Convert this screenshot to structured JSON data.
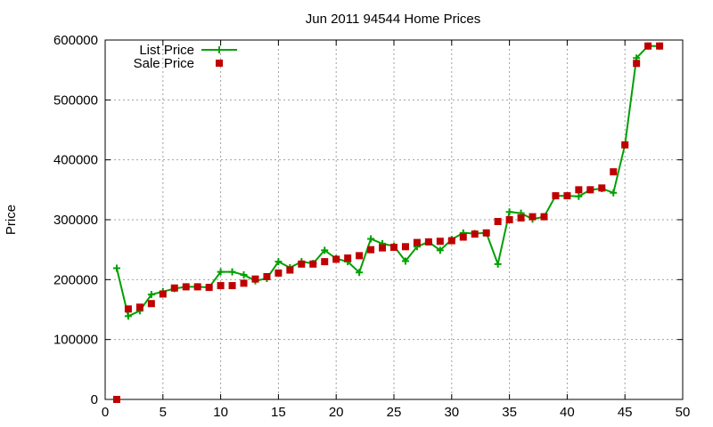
{
  "chart_data": {
    "type": "line",
    "title": "Jun 2011 94544 Home Prices",
    "xlabel": "",
    "ylabel": "Price",
    "xlim": [
      0,
      50
    ],
    "ylim": [
      0,
      600000
    ],
    "x_ticks": [
      0,
      5,
      10,
      15,
      20,
      25,
      30,
      35,
      40,
      45,
      50
    ],
    "y_ticks": [
      0,
      100000,
      200000,
      300000,
      400000,
      500000,
      600000
    ],
    "grid": true,
    "legend_position": "top-left",
    "series": [
      {
        "name": "List Price",
        "style": "line-with-plus-markers",
        "color": "#00a000",
        "x": [
          1,
          2,
          3,
          4,
          5,
          6,
          7,
          8,
          9,
          10,
          11,
          12,
          13,
          14,
          15,
          16,
          17,
          18,
          19,
          20,
          21,
          22,
          23,
          24,
          25,
          26,
          27,
          28,
          29,
          30,
          31,
          32,
          33,
          34,
          35,
          36,
          37,
          38,
          39,
          40,
          41,
          42,
          43,
          44,
          45,
          46,
          47,
          48
        ],
        "y": [
          219000,
          139000,
          148000,
          175000,
          180000,
          185000,
          188000,
          188000,
          187000,
          213000,
          213000,
          208000,
          198000,
          202000,
          230000,
          220000,
          230000,
          227000,
          249000,
          235000,
          230000,
          212000,
          268000,
          260000,
          256000,
          231000,
          255000,
          263000,
          249000,
          267000,
          278000,
          277000,
          278000,
          226000,
          313000,
          311000,
          301000,
          305000,
          340000,
          340000,
          339000,
          350000,
          352000,
          345000,
          425000,
          570000,
          590000,
          590000
        ]
      },
      {
        "name": "Sale Price",
        "style": "square-markers",
        "color": "#c00000",
        "x": [
          1,
          2,
          3,
          4,
          5,
          6,
          7,
          8,
          9,
          10,
          11,
          12,
          13,
          14,
          15,
          16,
          17,
          18,
          19,
          20,
          21,
          22,
          23,
          24,
          25,
          26,
          27,
          28,
          29,
          30,
          31,
          32,
          33,
          34,
          35,
          36,
          37,
          38,
          39,
          40,
          41,
          42,
          43,
          44,
          45,
          46,
          47,
          48
        ],
        "y": [
          0,
          151000,
          154000,
          160000,
          176000,
          186000,
          188000,
          188000,
          187000,
          190000,
          190000,
          194000,
          201000,
          205000,
          211000,
          216000,
          226000,
          226000,
          230000,
          234000,
          236000,
          240000,
          250000,
          253000,
          254000,
          255000,
          262000,
          263000,
          264000,
          265000,
          271000,
          276000,
          278000,
          297000,
          300000,
          303000,
          305000,
          305000,
          340000,
          340000,
          350000,
          350000,
          353000,
          380000,
          425000,
          561000,
          590000,
          590000
        ]
      }
    ]
  }
}
